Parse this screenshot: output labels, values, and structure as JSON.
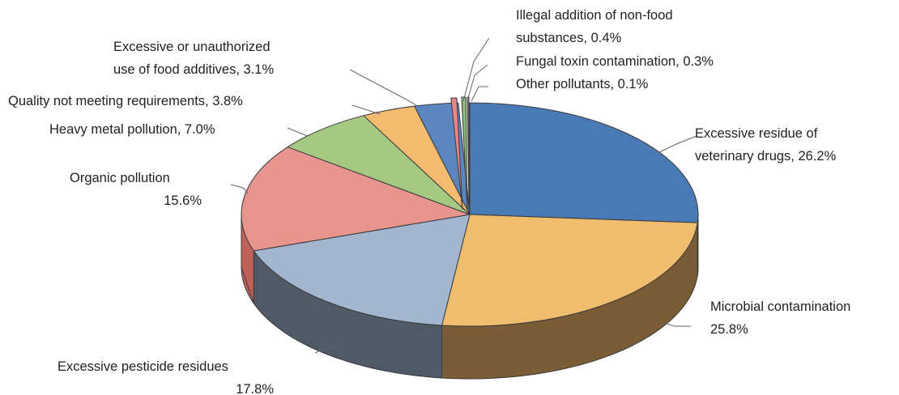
{
  "chart_data": {
    "type": "pie",
    "title": "",
    "style": "3d-exploded-perspective",
    "slices": [
      {
        "name": "Excessive residue of veterinary drugs",
        "value": 26.2,
        "label_lines": [
          "Excessive residue of",
          "veterinary drugs, 26.2%"
        ],
        "color": "#4a7ab5",
        "side_color": "#2d4f7a"
      },
      {
        "name": "Microbial contamination",
        "value": 25.8,
        "label_lines": [
          "Microbial contamination",
          "25.8%"
        ],
        "color": "#f0bc6e",
        "side_color": "#7a5c36"
      },
      {
        "name": "Excessive pesticide residues",
        "value": 17.8,
        "label_lines": [
          "Excessive pesticide residues",
          "17.8%"
        ],
        "color": "#a2b6cf",
        "side_color": "#4f5a66"
      },
      {
        "name": "Organic pollution",
        "value": 15.6,
        "label_lines": [
          "Organic pollution",
          "15.6%"
        ],
        "color": "#e8948f",
        "side_color": "#c0605a"
      },
      {
        "name": "Heavy metal pollution",
        "value": 7.0,
        "label_lines": [
          "Heavy metal pollution, 7.0%"
        ],
        "color": "#a5c882",
        "side_color": "#5f7d45"
      },
      {
        "name": "Quality not meeting requirements",
        "value": 3.8,
        "label_lines": [
          "Quality not meeting requirements, 3.8%"
        ],
        "color": "#f2bb70",
        "side_color": "#8a6a3a"
      },
      {
        "name": "Excessive or unauthorized use of food additives",
        "value": 3.1,
        "label_lines": [
          "Excessive or unauthorized",
          "use of food additives, 3.1%"
        ],
        "color": "#5b86c0",
        "side_color": "#2f4d74"
      },
      {
        "name": "Illegal addition of non-food substances",
        "value": 0.4,
        "label_lines": [
          "Illegal addition of non-food",
          "substances, 0.4%"
        ],
        "color": "#e8848a",
        "side_color": "#a05055"
      },
      {
        "name": "Fungal toxin contamination",
        "value": 0.3,
        "label_lines": [
          "Fungal toxin contamination, 0.3%"
        ],
        "color": "#8fbd7a",
        "side_color": "#5a7d4a"
      },
      {
        "name": "Other pollutants",
        "value": 0.1,
        "label_lines": [
          "Other pollutants, 0.1%"
        ],
        "color": "#8a8ab8",
        "side_color": "#55557a"
      }
    ]
  }
}
